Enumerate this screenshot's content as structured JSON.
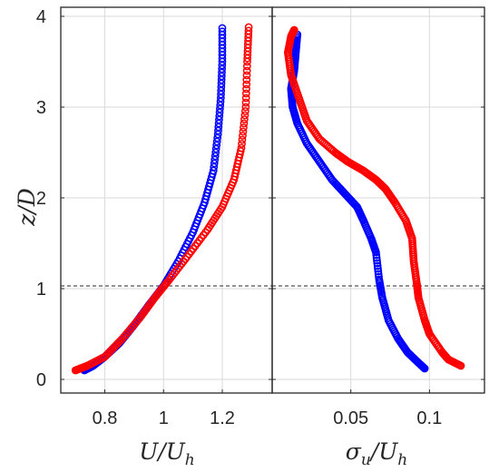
{
  "chart_data": [
    {
      "type": "scatter",
      "panel": "left",
      "xlabel": {
        "main": "U/U",
        "sub": "h"
      },
      "ylabel": {
        "main": "z/D",
        "sub": ""
      },
      "xlim": [
        0.65,
        1.37
      ],
      "ylim": [
        -0.15,
        4.1
      ],
      "xticks": [
        0.8,
        1,
        1.2
      ],
      "xtick_labels": [
        "0.8",
        "1",
        "1.2"
      ],
      "yticks": [
        0,
        1,
        2,
        3,
        4
      ],
      "ytick_labels": [
        "0",
        "1",
        "2",
        "3",
        "4"
      ],
      "grid": true,
      "reference_line": {
        "y": 1.03,
        "style": "dashed"
      },
      "marker": "open-circle",
      "series": [
        {
          "color": "#0000ff",
          "points": [
            [
              0.73,
              0.1
            ],
            [
              0.76,
              0.15
            ],
            [
              0.8,
              0.25
            ],
            [
              0.85,
              0.4
            ],
            [
              0.9,
              0.6
            ],
            [
              0.95,
              0.82
            ],
            [
              1.0,
              1.03
            ],
            [
              1.05,
              1.3
            ],
            [
              1.1,
              1.62
            ],
            [
              1.14,
              1.95
            ],
            [
              1.17,
              2.3
            ],
            [
              1.185,
              2.7
            ],
            [
              1.195,
              3.1
            ],
            [
              1.2,
              3.5
            ],
            [
              1.2,
              3.87
            ]
          ]
        },
        {
          "color": "#ff0000",
          "points": [
            [
              0.7,
              0.1
            ],
            [
              0.74,
              0.15
            ],
            [
              0.8,
              0.25
            ],
            [
              0.86,
              0.45
            ],
            [
              0.92,
              0.68
            ],
            [
              0.97,
              0.9
            ],
            [
              1.02,
              1.1
            ],
            [
              1.08,
              1.35
            ],
            [
              1.15,
              1.65
            ],
            [
              1.2,
              1.9
            ],
            [
              1.24,
              2.2
            ],
            [
              1.265,
              2.55
            ],
            [
              1.28,
              3.0
            ],
            [
              1.285,
              3.5
            ],
            [
              1.29,
              3.88
            ]
          ]
        }
      ]
    },
    {
      "type": "scatter",
      "panel": "right",
      "xlabel": {
        "main": "σ",
        "sub1": "u",
        "mid": "/U",
        "sub2": "h"
      },
      "xlim": [
        0.0,
        0.135
      ],
      "ylim": [
        -0.15,
        4.1
      ],
      "xticks": [
        0.05,
        0.1
      ],
      "xtick_labels": [
        "0.05",
        "0.1"
      ],
      "yticks": [
        0,
        1,
        2,
        3,
        4
      ],
      "grid": true,
      "reference_line": {
        "y": 1.03,
        "style": "dashed"
      },
      "marker": "open-circle",
      "series": [
        {
          "color": "#0000ff",
          "points": [
            [
              0.097,
              0.12
            ],
            [
              0.092,
              0.2
            ],
            [
              0.086,
              0.3
            ],
            [
              0.08,
              0.45
            ],
            [
              0.074,
              0.65
            ],
            [
              0.07,
              0.9
            ],
            [
              0.068,
              1.1
            ],
            [
              0.066,
              1.4
            ],
            [
              0.063,
              1.55
            ],
            [
              0.058,
              1.75
            ],
            [
              0.054,
              1.9
            ],
            [
              0.046,
              2.05
            ],
            [
              0.038,
              2.2
            ],
            [
              0.03,
              2.4
            ],
            [
              0.022,
              2.6
            ],
            [
              0.016,
              2.82
            ],
            [
              0.013,
              3.0
            ],
            [
              0.012,
              3.2
            ],
            [
              0.014,
              3.4
            ],
            [
              0.015,
              3.6
            ],
            [
              0.016,
              3.8
            ]
          ]
        },
        {
          "color": "#ff0000",
          "points": [
            [
              0.12,
              0.15
            ],
            [
              0.112,
              0.22
            ],
            [
              0.108,
              0.3
            ],
            [
              0.1,
              0.5
            ],
            [
              0.097,
              0.65
            ],
            [
              0.093,
              0.9
            ],
            [
              0.092,
              1.05
            ],
            [
              0.09,
              1.3
            ],
            [
              0.089,
              1.55
            ],
            [
              0.085,
              1.75
            ],
            [
              0.078,
              1.95
            ],
            [
              0.072,
              2.1
            ],
            [
              0.066,
              2.2
            ],
            [
              0.058,
              2.3
            ],
            [
              0.048,
              2.4
            ],
            [
              0.04,
              2.5
            ],
            [
              0.03,
              2.65
            ],
            [
              0.022,
              2.85
            ],
            [
              0.017,
              3.1
            ],
            [
              0.012,
              3.35
            ],
            [
              0.01,
              3.6
            ],
            [
              0.012,
              3.78
            ],
            [
              0.014,
              3.85
            ]
          ]
        }
      ]
    }
  ]
}
